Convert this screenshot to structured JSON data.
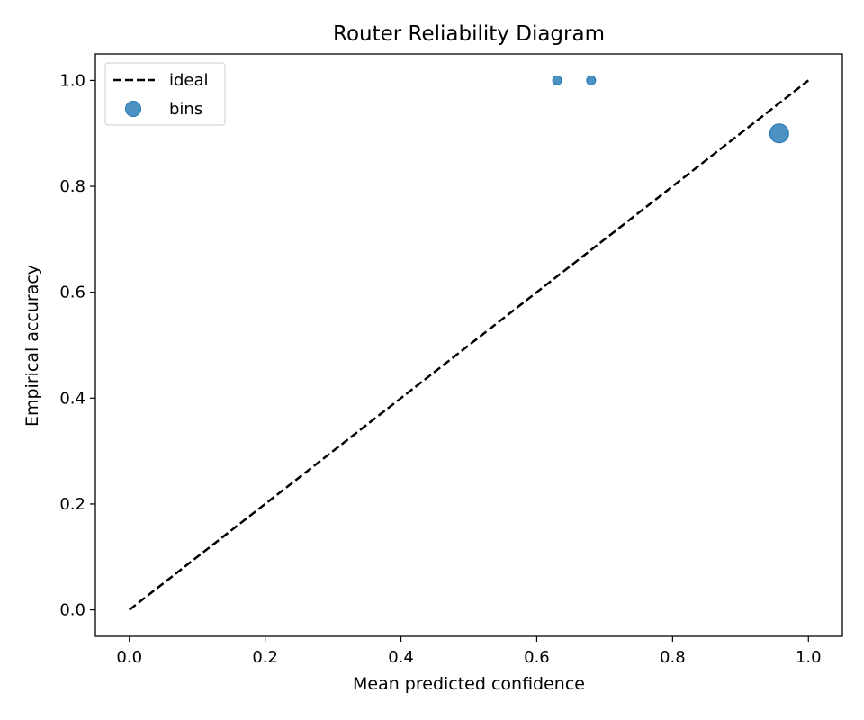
{
  "chart_data": {
    "type": "scatter",
    "title": "Router Reliability Diagram",
    "xlabel": "Mean predicted confidence",
    "ylabel": "Empirical accuracy",
    "xlim": [
      -0.05,
      1.05
    ],
    "ylim": [
      -0.05,
      1.05
    ],
    "xticks": [
      "0.0",
      "0.2",
      "0.4",
      "0.6",
      "0.8",
      "1.0"
    ],
    "yticks": [
      "0.0",
      "0.2",
      "0.4",
      "0.6",
      "0.8",
      "1.0"
    ],
    "grid": false,
    "legend_position": "top-left",
    "series": [
      {
        "name": "ideal",
        "kind": "line",
        "style": "dashed",
        "color": "#000000",
        "x": [
          0.0,
          1.0
        ],
        "y": [
          0.0,
          1.0
        ]
      },
      {
        "name": "bins",
        "kind": "scatter",
        "color": "#1f77b4",
        "points": [
          {
            "x": 0.63,
            "y": 1.0,
            "size": "small"
          },
          {
            "x": 0.68,
            "y": 1.0,
            "size": "small"
          },
          {
            "x": 0.957,
            "y": 0.9,
            "size": "large"
          }
        ]
      }
    ]
  }
}
